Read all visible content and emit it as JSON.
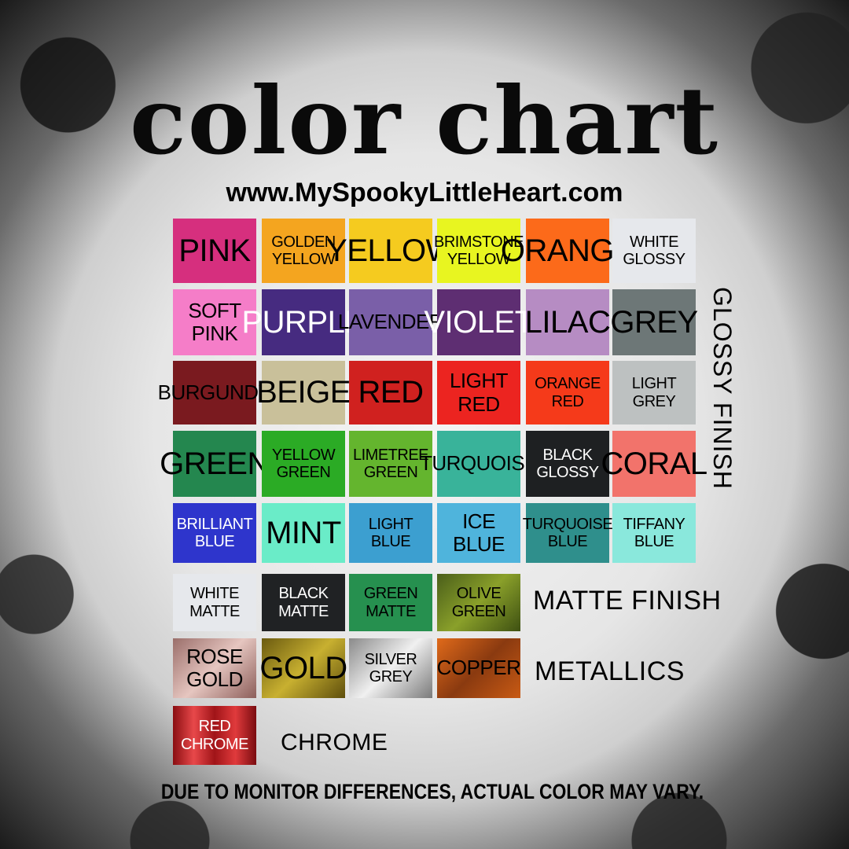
{
  "title": "color chart",
  "website": "www.MySpookyLittleHeart.com",
  "glossy_label": "GLOSSY FINISH",
  "matte_label": "MATTE FINISH",
  "metallic_label": "METALLICS",
  "chrome_label": "CHROME",
  "disclaimer": "DUE TO MONITOR DIFFERENCES, ACTUAL COLOR MAY VARY.",
  "glossy": [
    [
      {
        "label": "PINK",
        "bg": "#d62f7e",
        "fg": "#000"
      },
      {
        "label": "GOLDEN\nYELLOW",
        "bg": "#f4a51f",
        "fg": "#000"
      },
      {
        "label": "YELLOW",
        "bg": "#f5cb1f",
        "fg": "#000"
      },
      {
        "label": "BRIMSTONE\nYELLOW",
        "bg": "#e8f520",
        "fg": "#000"
      },
      {
        "label": "ORANGE",
        "bg": "#fc6a1a",
        "fg": "#000"
      },
      {
        "label": "WHITE\nGLOSSY",
        "bg": "#e6e8ec",
        "fg": "#000"
      }
    ],
    [
      {
        "label": "SOFT\nPINK",
        "bg": "#f57dc8",
        "fg": "#000"
      },
      {
        "label": "PURPLE",
        "bg": "#462b80",
        "fg": "#fff"
      },
      {
        "label": "LAVENDER",
        "bg": "#7a5fa8",
        "fg": "#000"
      },
      {
        "label": "VIOLET",
        "bg": "#5e2e72",
        "fg": "#fff"
      },
      {
        "label": "LILAC",
        "bg": "#b68cc3",
        "fg": "#000"
      },
      {
        "label": "GREY",
        "bg": "#6d7777",
        "fg": "#000"
      }
    ],
    [
      {
        "label": "BURGUNDY",
        "bg": "#7a1a1f",
        "fg": "#000"
      },
      {
        "label": "BEIGE",
        "bg": "#c9c09a",
        "fg": "#000"
      },
      {
        "label": "RED",
        "bg": "#d0211f",
        "fg": "#000"
      },
      {
        "label": "LIGHT\nRED",
        "bg": "#ec2420",
        "fg": "#000"
      },
      {
        "label": "ORANGE\nRED",
        "bg": "#f53a1a",
        "fg": "#000"
      },
      {
        "label": "LIGHT\nGREY",
        "bg": "#bdc1c1",
        "fg": "#000"
      }
    ],
    [
      {
        "label": "GREEN",
        "bg": "#24874f",
        "fg": "#000"
      },
      {
        "label": "YELLOW\nGREEN",
        "bg": "#2bab25",
        "fg": "#000"
      },
      {
        "label": "LIMETREE\nGREEN",
        "bg": "#64b52e",
        "fg": "#000"
      },
      {
        "label": "TURQUOISE",
        "bg": "#39b39a",
        "fg": "#000"
      },
      {
        "label": "BLACK\nGLOSSY",
        "bg": "#1e2022",
        "fg": "#fff"
      },
      {
        "label": "CORAL",
        "bg": "#f2736b",
        "fg": "#000"
      }
    ],
    [
      {
        "label": "BRILLIANT\nBLUE",
        "bg": "#2e35cc",
        "fg": "#fff"
      },
      {
        "label": "MINT",
        "bg": "#6aecc8",
        "fg": "#000"
      },
      {
        "label": "LIGHT\nBLUE",
        "bg": "#3c9fd0",
        "fg": "#000"
      },
      {
        "label": "ICE\nBLUE",
        "bg": "#4fb4dc",
        "fg": "#000"
      },
      {
        "label": "TURQUOISE\nBLUE",
        "bg": "#2f8f8c",
        "fg": "#000"
      },
      {
        "label": "TIFFANY\nBLUE",
        "bg": "#8ae8dc",
        "fg": "#000"
      }
    ]
  ],
  "matte": [
    {
      "label": "WHITE\nMATTE",
      "bg": "#e6e8ec",
      "fg": "#000"
    },
    {
      "label": "BLACK\nMATTE",
      "bg": "#202224",
      "fg": "#fff"
    },
    {
      "label": "GREEN\nMATTE",
      "bg": "#26904f",
      "fg": "#000"
    },
    {
      "label": "OLIVE\nGREEN",
      "bg": "linear-gradient(135deg,#4a5e1a,#8aa02a,#3e5012)",
      "fg": "#000"
    }
  ],
  "metallic": [
    {
      "label": "ROSE\nGOLD",
      "bg": "linear-gradient(135deg,#9a6e6a,#e6c6c0,#8c5e5a)",
      "fg": "#000"
    },
    {
      "label": "GOLD",
      "bg": "linear-gradient(135deg,#6a5a10,#c8b030,#5e4e0c)",
      "fg": "#000"
    },
    {
      "label": "SILVER\nGREY",
      "bg": "linear-gradient(135deg,#8a8a8a,#f0f0f0,#7a7a7a)",
      "fg": "#000"
    },
    {
      "label": "COPPER",
      "bg": "linear-gradient(135deg,#e06a1a,#8a3a10,#c85a14)",
      "fg": "#000"
    }
  ],
  "chrome": [
    {
      "label": "RED\nCHROME",
      "bg": "linear-gradient(90deg,#8a0e12,#e8484a,#a01418,#e03a3c,#7a0c10)",
      "fg": "#fff"
    }
  ]
}
